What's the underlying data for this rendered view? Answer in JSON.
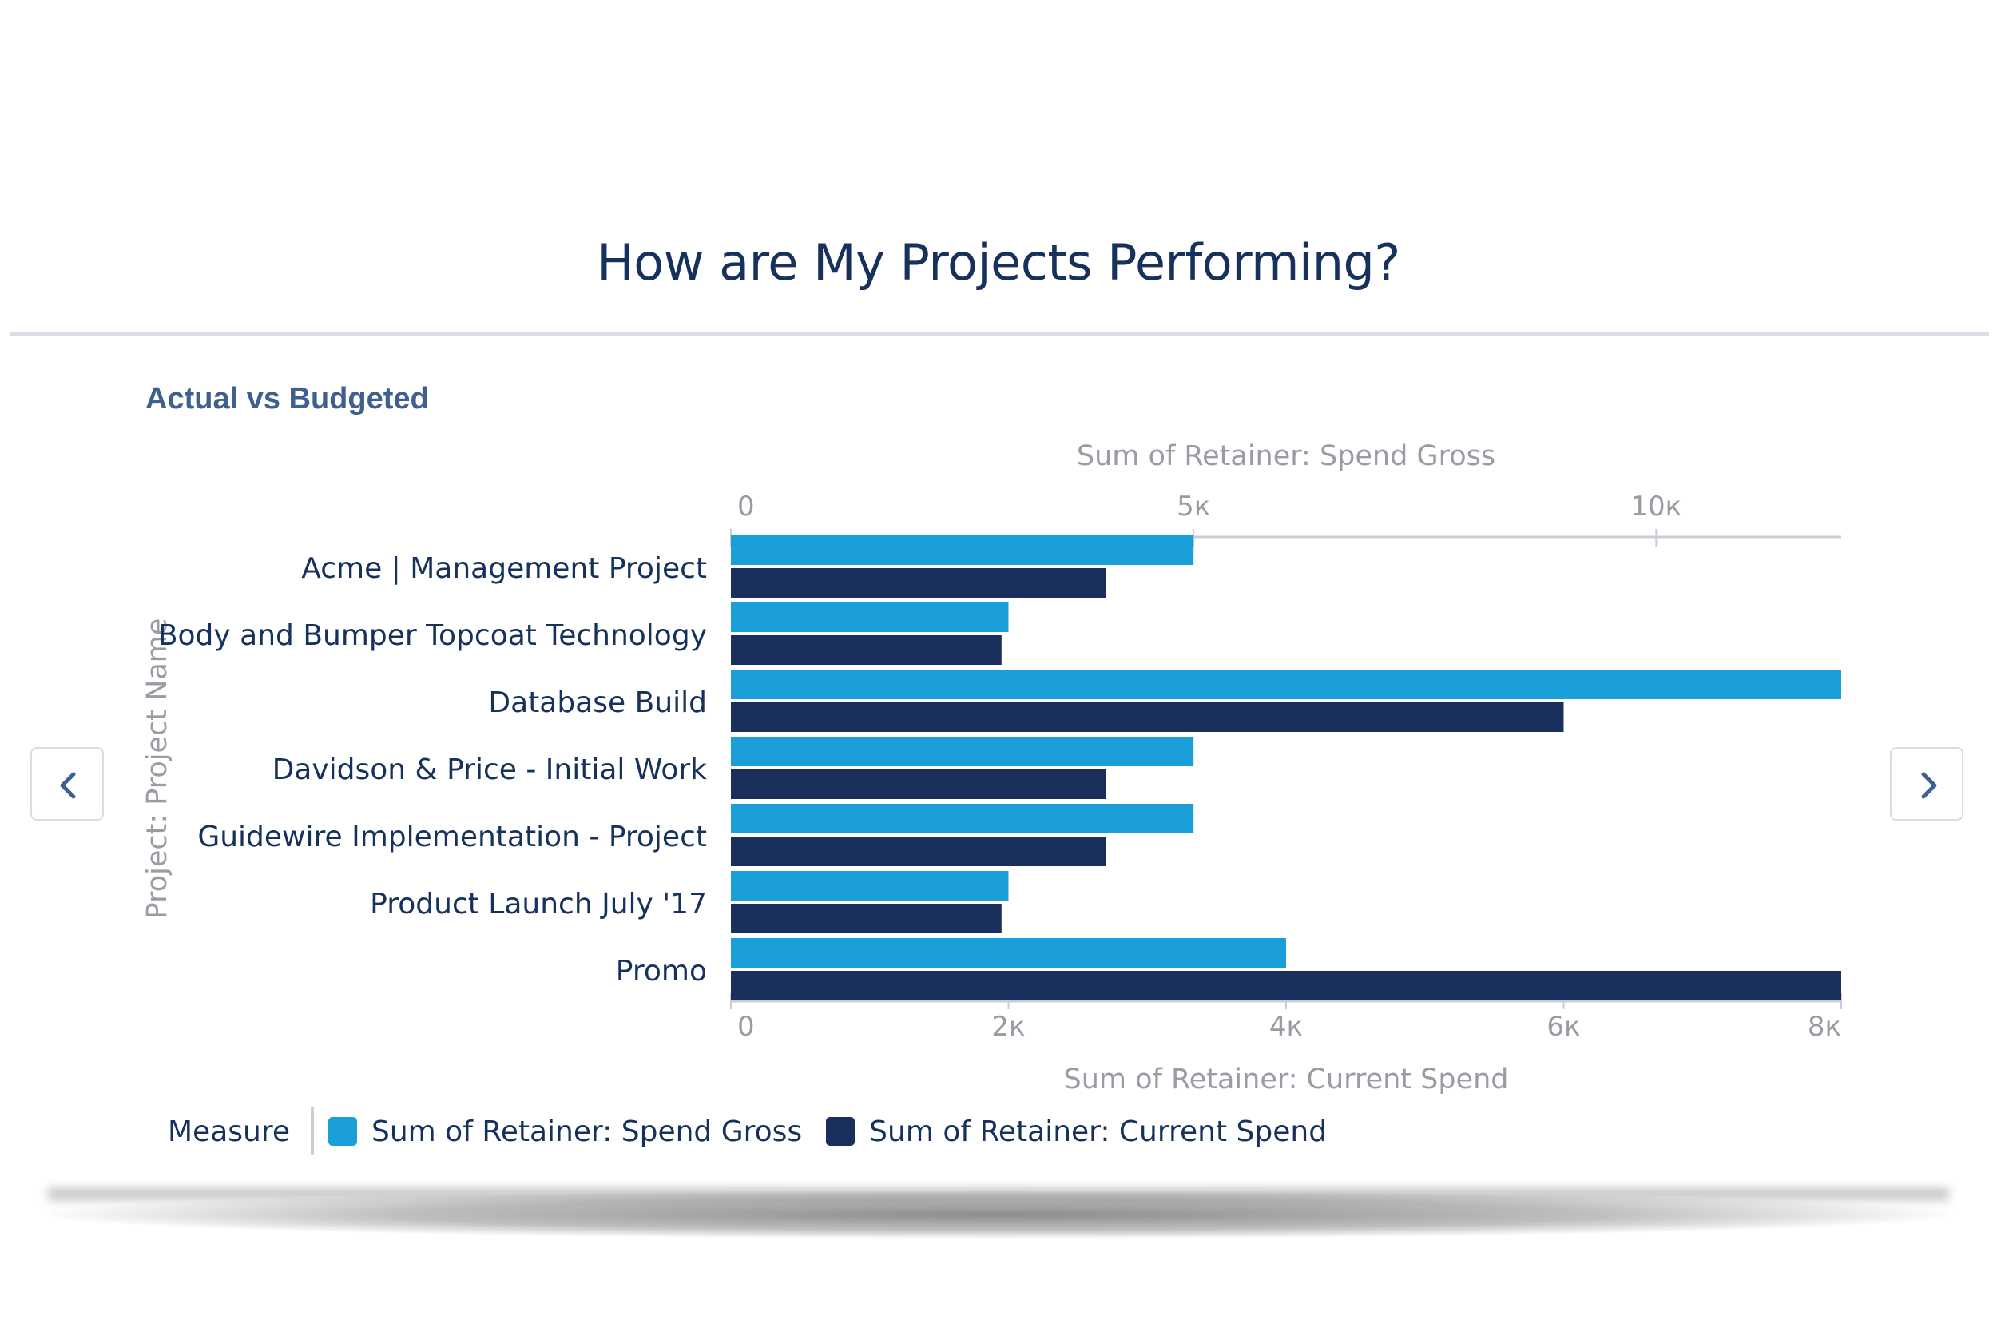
{
  "page_title": "How are My Projects Performing?",
  "card": {
    "subtitle": "Actual vs Budgeted",
    "prev_icon": "chevron-left-icon",
    "next_icon": "chevron-right-icon"
  },
  "colors": {
    "spend_gross": "#1b9fd9",
    "current_spend": "#1b2f5c",
    "axis": "#c9ced6",
    "axis_text": "#999da3",
    "label_text": "#16325c"
  },
  "chart_data": {
    "type": "bar",
    "orientation": "horizontal",
    "ylabel": "Project: Project Name",
    "categories": [
      "Acme | Management Project",
      "Body and Bumper Topcoat Technology",
      "Database Build",
      "Davidson & Price - Initial Work",
      "Guidewire Implementation - Project",
      "Product Launch July '17",
      "Promo"
    ],
    "series": [
      {
        "name": "Sum of Retainer: Spend Gross",
        "axis": "top",
        "values": [
          5000,
          3000,
          12000,
          5000,
          5000,
          3000,
          6000
        ]
      },
      {
        "name": "Sum of Retainer: Current Spend",
        "axis": "bottom",
        "values": [
          2700,
          1950,
          6000,
          2700,
          2700,
          1950,
          8000
        ]
      }
    ],
    "top_axis": {
      "label": "Sum of Retainer: Spend Gross",
      "range": [
        0,
        12000
      ],
      "ticks": [
        0,
        5000,
        10000
      ],
      "tick_labels": [
        "0",
        "5к",
        "10к"
      ]
    },
    "bottom_axis": {
      "label": "Sum of Retainer: Current Spend",
      "range": [
        0,
        8000
      ],
      "ticks": [
        0,
        2000,
        4000,
        6000,
        8000
      ],
      "tick_labels": [
        "0",
        "2к",
        "4к",
        "6к",
        "8к"
      ]
    },
    "legend": {
      "title": "Measure",
      "placement": "bottom-left"
    },
    "grid": false
  }
}
